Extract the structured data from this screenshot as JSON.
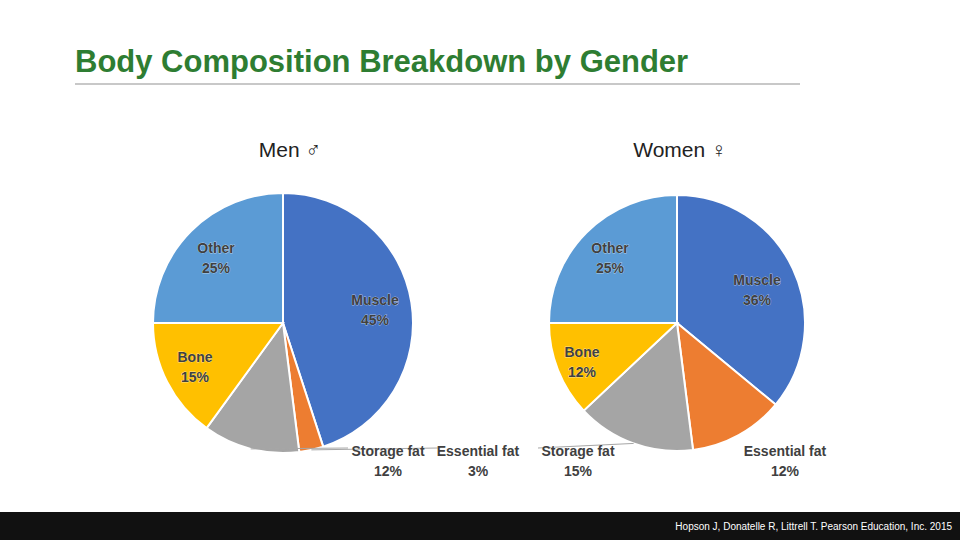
{
  "title": "Body Composition Breakdown by Gender",
  "source": "Hopson J, Donatelle R, Littrell T. Pearson Education, Inc. 2015",
  "chart_data": [
    {
      "type": "pie",
      "title": "Men ♂",
      "categories": [
        "Muscle",
        "Essential fat",
        "Storage fat",
        "Bone",
        "Other"
      ],
      "values": [
        45,
        3,
        12,
        15,
        25
      ],
      "value_labels": [
        "45%",
        "3%",
        "12%",
        "15%",
        "25%"
      ],
      "colors": [
        "#4472c4",
        "#ed7d31",
        "#a5a5a5",
        "#ffc000",
        "#5b9bd5"
      ],
      "data_labels": true
    },
    {
      "type": "pie",
      "title": "Women ♀",
      "categories": [
        "Muscle",
        "Essential fat",
        "Storage fat",
        "Bone",
        "Other"
      ],
      "values": [
        36,
        12,
        15,
        12,
        25
      ],
      "value_labels": [
        "36%",
        "12%",
        "15%",
        "12%",
        "25%"
      ],
      "colors": [
        "#4472c4",
        "#ed7d31",
        "#a5a5a5",
        "#ffc000",
        "#5b9bd5"
      ],
      "data_labels": true
    }
  ]
}
